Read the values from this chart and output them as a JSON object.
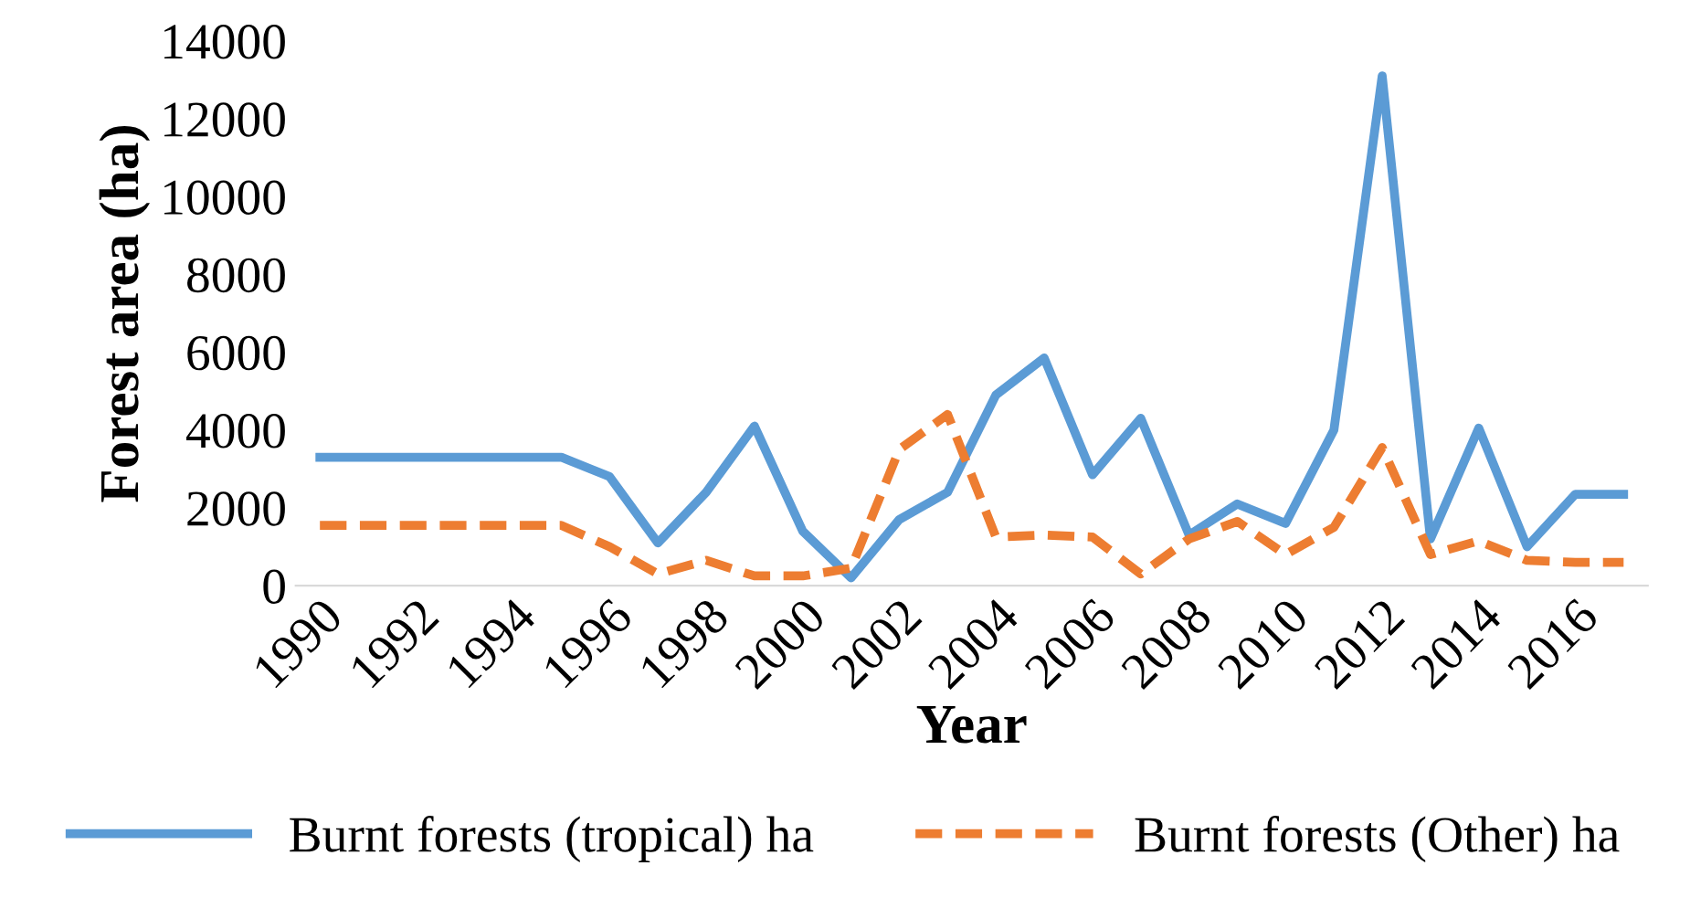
{
  "chart_data": {
    "type": "line",
    "xlabel": "Year",
    "ylabel": "Forest area (ha)",
    "x": [
      1990,
      1991,
      1992,
      1993,
      1994,
      1995,
      1996,
      1997,
      1998,
      1999,
      2000,
      2001,
      2002,
      2003,
      2004,
      2005,
      2006,
      2007,
      2008,
      2009,
      2010,
      2011,
      2012,
      2013,
      2014,
      2015,
      2016,
      2017
    ],
    "series": [
      {
        "name": "Burnt forests (tropical) ha",
        "color": "#5b9bd5",
        "line_style": "solid",
        "values": [
          3300,
          3300,
          3300,
          3300,
          3300,
          3300,
          2800,
          1100,
          2400,
          4100,
          1400,
          200,
          1700,
          2400,
          4900,
          5850,
          2850,
          4300,
          1300,
          2100,
          1600,
          4000,
          13100,
          1200,
          4050,
          1000,
          2350,
          2350
        ]
      },
      {
        "name": "Burnt forests (Other) ha",
        "color": "#ed7d31",
        "line_style": "dashed",
        "values": [
          1550,
          1550,
          1550,
          1550,
          1550,
          1550,
          1000,
          300,
          650,
          250,
          250,
          450,
          3500,
          4400,
          1250,
          1300,
          1250,
          300,
          1200,
          1650,
          800,
          1500,
          3550,
          800,
          1150,
          650,
          600,
          600
        ]
      }
    ],
    "xlim": [
      1989.5,
      2017.5
    ],
    "xticks": [
      1990,
      1992,
      1994,
      1996,
      1998,
      2000,
      2002,
      2004,
      2006,
      2008,
      2010,
      2012,
      2014,
      2016
    ],
    "ylim": [
      0,
      14000
    ],
    "yticks": [
      0,
      2000,
      4000,
      6000,
      8000,
      10000,
      12000,
      14000
    ],
    "grid": false,
    "legend": "bottom",
    "marker": "none"
  }
}
